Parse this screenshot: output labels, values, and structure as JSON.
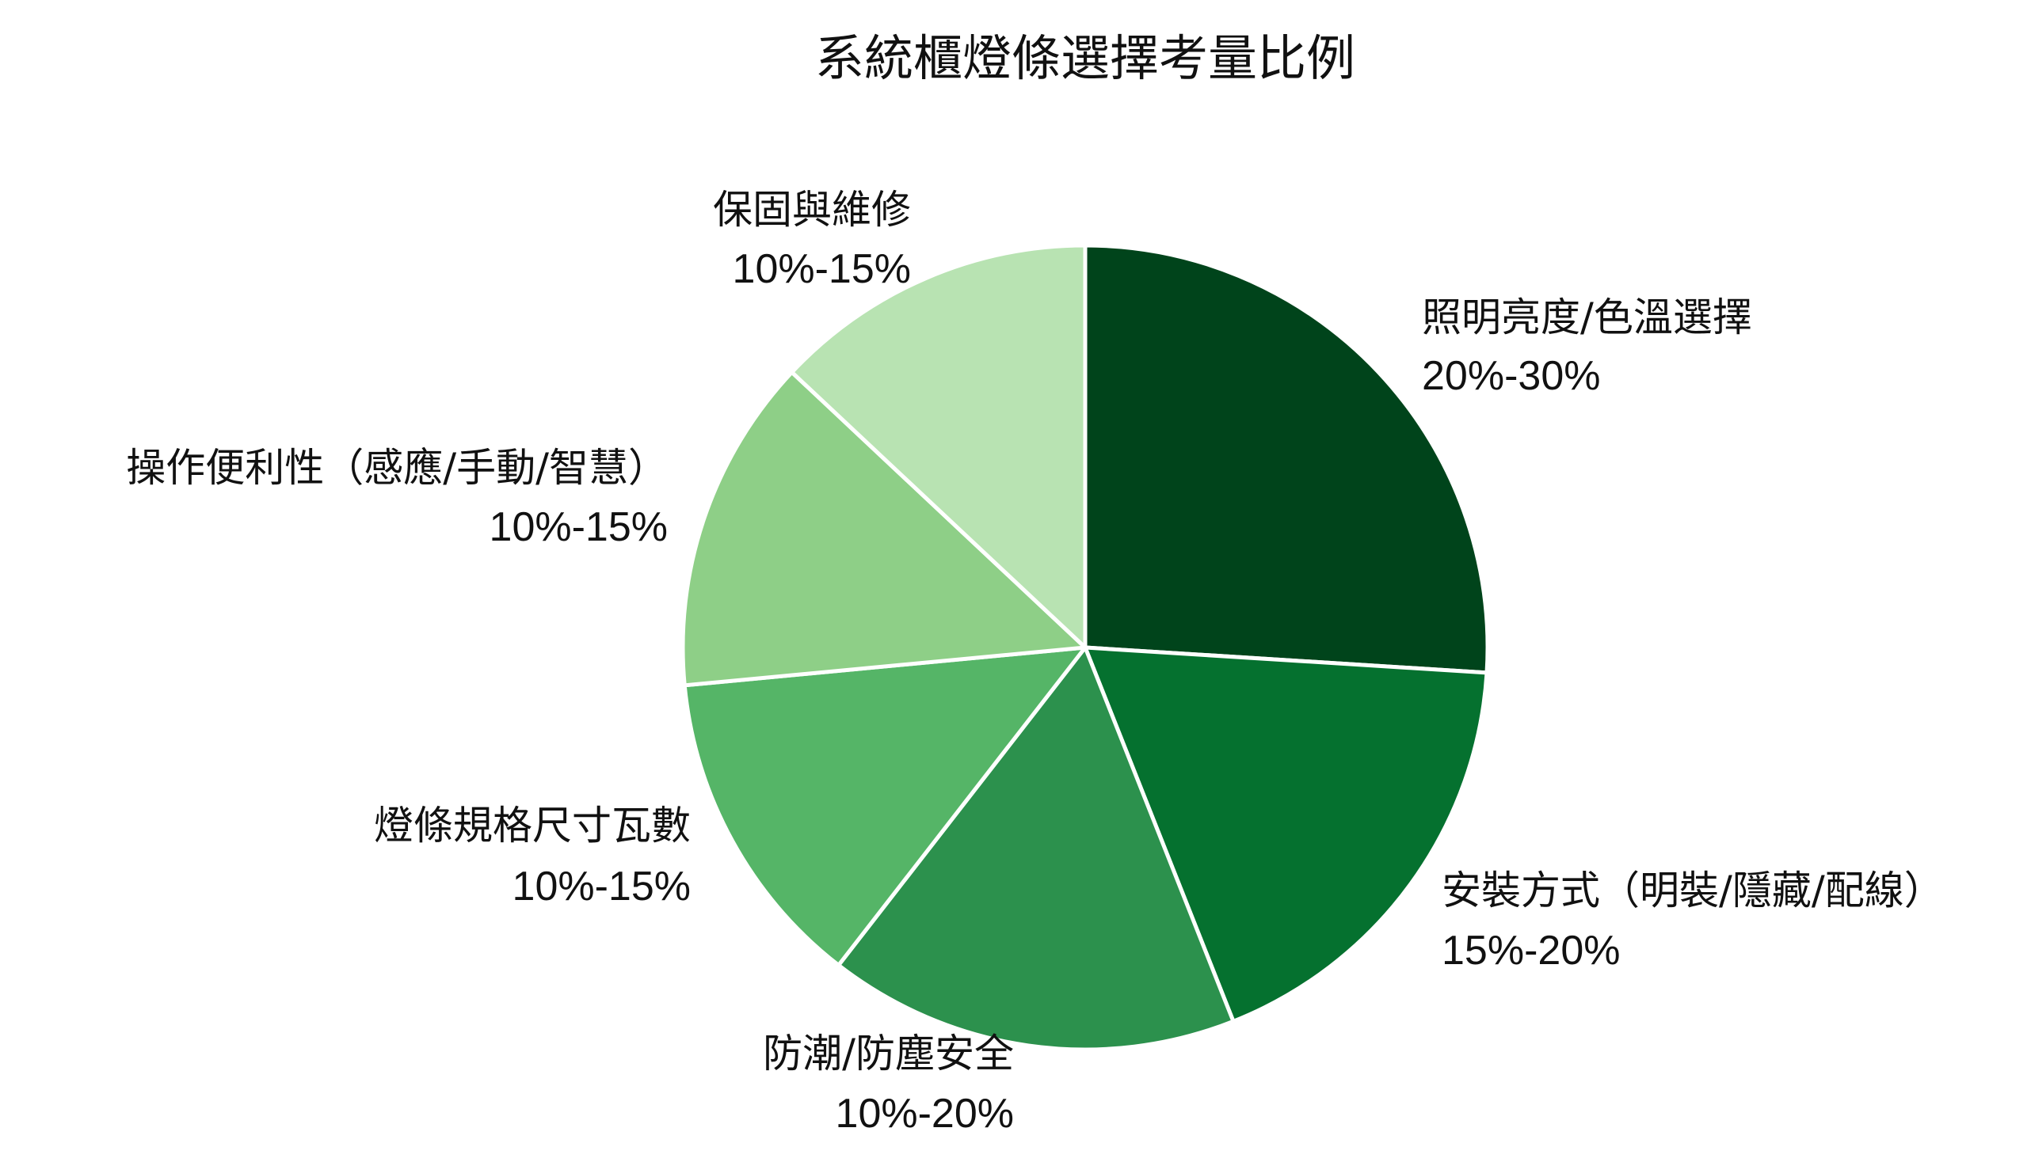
{
  "chart_data": {
    "type": "pie",
    "title": "系統櫃燈條選擇考量比例",
    "start_angle_deg": 0,
    "direction": "clockwise",
    "slices": [
      {
        "label": "照明亮度/色溫選擇",
        "range": "20%-30%",
        "value": 26.0,
        "color": "#00441b"
      },
      {
        "label": "安裝方式（明裝/隱藏/配線）",
        "range": "15%-20%",
        "value": 18.0,
        "color": "#05712f"
      },
      {
        "label": "防潮/防塵安全",
        "range": "10%-20%",
        "value": 16.5,
        "color": "#2c914d"
      },
      {
        "label": "燈條規格尺寸瓦數",
        "range": "10%-15%",
        "value": 13.0,
        "color": "#55b567"
      },
      {
        "label": "操作便利性（感應/手動/智慧）",
        "range": "10%-15%",
        "value": 13.5,
        "color": "#8ecf87"
      },
      {
        "label": "保固與維修",
        "range": "10%-15%",
        "value": 13.0,
        "color": "#b8e3b2"
      }
    ]
  }
}
